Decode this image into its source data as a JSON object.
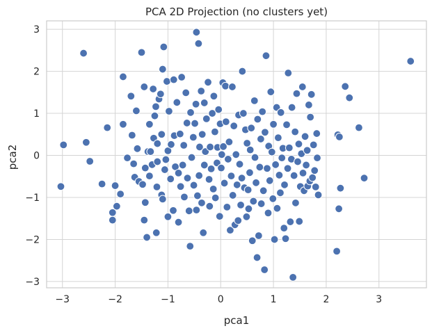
{
  "chart_data": {
    "type": "scatter",
    "title": "PCA 2D Projection (no clusters yet)",
    "xlabel": "pca1",
    "ylabel": "pca2",
    "xlim": [
      -3.3,
      3.9
    ],
    "ylim": [
      -3.15,
      3.2
    ],
    "xticks": [
      -3,
      -2,
      -1,
      0,
      1,
      2,
      3
    ],
    "yticks": [
      -3,
      -2,
      -1,
      0,
      1,
      2,
      3
    ],
    "grid": true,
    "point_color": "#4c72b0",
    "points": [
      [
        -3.03,
        -0.74
      ],
      [
        -2.98,
        0.25
      ],
      [
        -2.6,
        2.43
      ],
      [
        -2.55,
        0.31
      ],
      [
        -2.48,
        -0.14
      ],
      [
        -2.25,
        -0.68
      ],
      [
        -2.15,
        0.66
      ],
      [
        -2.05,
        -1.36
      ],
      [
        -2.05,
        -1.54
      ],
      [
        -2.0,
        -0.72
      ],
      [
        -1.97,
        -1.21
      ],
      [
        -1.9,
        -0.92
      ],
      [
        -1.85,
        1.87
      ],
      [
        -1.85,
        0.74
      ],
      [
        -1.77,
        -0.06
      ],
      [
        -1.7,
        1.41
      ],
      [
        -1.68,
        0.48
      ],
      [
        -1.65,
        -0.2
      ],
      [
        -1.63,
        -0.52
      ],
      [
        -1.6,
        1.06
      ],
      [
        -1.58,
        0.16
      ],
      [
        -1.55,
        -0.62
      ],
      [
        -1.5,
        2.45
      ],
      [
        -1.48,
        -0.69
      ],
      [
        -1.45,
        1.63
      ],
      [
        -1.43,
        -1.12
      ],
      [
        -1.43,
        -0.3
      ],
      [
        -1.45,
        -1.54
      ],
      [
        -1.4,
        -1.95
      ],
      [
        -1.38,
        0.09
      ],
      [
        -1.35,
        -0.49
      ],
      [
        -1.35,
        0.74
      ],
      [
        -1.33,
        0.09
      ],
      [
        -1.3,
        -0.22
      ],
      [
        -1.28,
        1.58
      ],
      [
        -1.27,
        0.41
      ],
      [
        -1.25,
        0.94
      ],
      [
        -1.23,
        1.16
      ],
      [
        -1.22,
        -1.84
      ],
      [
        -1.21,
        -0.75
      ],
      [
        -1.2,
        -0.15
      ],
      [
        -1.2,
        0.28
      ],
      [
        -1.17,
        1.34
      ],
      [
        -1.14,
        1.46
      ],
      [
        -1.12,
        -0.94
      ],
      [
        -1.12,
        0.5
      ],
      [
        -1.1,
        -1.04
      ],
      [
        -1.1,
        2.05
      ],
      [
        -1.08,
        2.58
      ],
      [
        -1.06,
        -0.34
      ],
      [
        -1.04,
        -0.1
      ],
      [
        -1.02,
        1.76
      ],
      [
        -1.0,
        -1.46
      ],
      [
        -1.0,
        0.11
      ],
      [
        -0.98,
        1.05
      ],
      [
        -0.95,
        -0.56
      ],
      [
        -0.94,
        0.26
      ],
      [
        -0.9,
        -1.31
      ],
      [
        -0.89,
        1.8
      ],
      [
        -0.88,
        0.47
      ],
      [
        -0.86,
        -0.27
      ],
      [
        -0.83,
        1.26
      ],
      [
        -0.8,
        -0.42
      ],
      [
        -0.8,
        -1.59
      ],
      [
        -0.77,
        0.51
      ],
      [
        -0.76,
        -0.74
      ],
      [
        -0.74,
        1.86
      ],
      [
        -0.72,
        -0.23
      ],
      [
        -0.7,
        0.24
      ],
      [
        -0.69,
        -0.99
      ],
      [
        -0.66,
        1.49
      ],
      [
        -0.64,
        0.77
      ],
      [
        -0.63,
        -0.54
      ],
      [
        -0.6,
        -1.32
      ],
      [
        -0.58,
        -2.16
      ],
      [
        -0.57,
        1.02
      ],
      [
        -0.55,
        -0.05
      ],
      [
        -0.52,
        0.43
      ],
      [
        -0.51,
        -0.71
      ],
      [
        -0.49,
        0.76
      ],
      [
        -0.47,
        1.22
      ],
      [
        -0.46,
        -1.3
      ],
      [
        -0.46,
        2.93
      ],
      [
        -0.44,
        -0.96
      ],
      [
        -0.42,
        2.66
      ],
      [
        -0.41,
        -0.48
      ],
      [
        -0.4,
        0.2
      ],
      [
        -0.37,
        1.53
      ],
      [
        -0.36,
        -1.13
      ],
      [
        -0.35,
        0.5
      ],
      [
        -0.33,
        -1.84
      ],
      [
        -0.31,
        1.25
      ],
      [
        -0.31,
        -0.23
      ],
      [
        -0.29,
        0.09
      ],
      [
        -0.27,
        0.87
      ],
      [
        -0.24,
        1.74
      ],
      [
        -0.22,
        -0.57
      ],
      [
        -0.21,
        -1.21
      ],
      [
        -0.2,
        0.2
      ],
      [
        -0.18,
        -0.32
      ],
      [
        -0.16,
        1.0
      ],
      [
        -0.14,
        -0.8
      ],
      [
        -0.13,
        1.41
      ],
      [
        -0.11,
        0.56
      ],
      [
        -0.1,
        -1.01
      ],
      [
        -0.07,
        -0.18
      ],
      [
        -0.06,
        0.19
      ],
      [
        -0.04,
        1.09
      ],
      [
        -0.02,
        -1.45
      ],
      [
        -0.01,
        0.75
      ],
      [
        0.01,
        -0.3
      ],
      [
        0.02,
        0.02
      ],
      [
        0.04,
        1.73
      ],
      [
        0.05,
        0.21
      ],
      [
        0.07,
        -0.66
      ],
      [
        0.09,
        1.65
      ],
      [
        0.1,
        0.8
      ],
      [
        0.12,
        -1.23
      ],
      [
        0.14,
        -0.09
      ],
      [
        0.16,
        0.32
      ],
      [
        0.18,
        -1.78
      ],
      [
        0.2,
        -0.49
      ],
      [
        0.22,
        1.63
      ],
      [
        0.23,
        -0.95
      ],
      [
        0.25,
        0.7
      ],
      [
        0.27,
        -1.65
      ],
      [
        0.29,
        0.02
      ],
      [
        0.31,
        -0.7
      ],
      [
        0.33,
        -1.55
      ],
      [
        0.34,
        0.96
      ],
      [
        0.36,
        -0.21
      ],
      [
        0.38,
        -1.18
      ],
      [
        0.4,
        -0.54
      ],
      [
        0.41,
        2.0
      ],
      [
        0.43,
        1.0
      ],
      [
        0.45,
        -0.77
      ],
      [
        0.47,
        0.61
      ],
      [
        0.49,
        -1.46
      ],
      [
        0.5,
        0.29
      ],
      [
        0.52,
        -0.82
      ],
      [
        0.53,
        -1.27
      ],
      [
        0.55,
        -0.41
      ],
      [
        0.56,
        0.13
      ],
      [
        0.58,
        0.65
      ],
      [
        0.6,
        -2.03
      ],
      [
        0.62,
        -1.09
      ],
      [
        0.64,
        1.3
      ],
      [
        0.65,
        -0.05
      ],
      [
        0.67,
        -0.65
      ],
      [
        0.69,
        -2.43
      ],
      [
        0.7,
        0.86
      ],
      [
        0.72,
        -1.91
      ],
      [
        0.74,
        -0.28
      ],
      [
        0.76,
        0.39
      ],
      [
        0.77,
        -1.15
      ],
      [
        0.79,
        1.04
      ],
      [
        0.81,
        -0.84
      ],
      [
        0.83,
        -2.72
      ],
      [
        0.84,
        0.55
      ],
      [
        0.86,
        2.37
      ],
      [
        0.88,
        -0.31
      ],
      [
        0.9,
        -1.37
      ],
      [
        0.91,
        0.22
      ],
      [
        0.93,
        -0.6
      ],
      [
        0.95,
        1.51
      ],
      [
        0.97,
        0.08
      ],
      [
        0.99,
        -1.03
      ],
      [
        1.0,
        0.74
      ],
      [
        1.02,
        -2.0
      ],
      [
        1.04,
        -0.22
      ],
      [
        1.06,
        1.14
      ],
      [
        1.07,
        -1.26
      ],
      [
        1.09,
        0.42
      ],
      [
        1.11,
        -0.47
      ],
      [
        1.13,
        -0.89
      ],
      [
        1.14,
        1.02
      ],
      [
        1.16,
        -0.06
      ],
      [
        1.18,
        0.17
      ],
      [
        1.2,
        -1.73
      ],
      [
        1.21,
        -0.7
      ],
      [
        1.23,
        -1.98
      ],
      [
        1.25,
        0.73
      ],
      [
        1.27,
        -0.31
      ],
      [
        1.28,
        1.96
      ],
      [
        1.3,
        0.18
      ],
      [
        1.32,
        -1.58
      ],
      [
        1.34,
        -0.09
      ],
      [
        1.35,
        1.14
      ],
      [
        1.37,
        -2.9
      ],
      [
        1.39,
        -0.48
      ],
      [
        1.41,
        0.56
      ],
      [
        1.42,
        -1.13
      ],
      [
        1.44,
        1.47
      ],
      [
        1.46,
        -0.15
      ],
      [
        1.48,
        0.27
      ],
      [
        1.49,
        -1.57
      ],
      [
        1.51,
        -0.74
      ],
      [
        1.53,
        0.04
      ],
      [
        1.55,
        1.63
      ],
      [
        1.56,
        -0.42
      ],
      [
        1.58,
        -0.84
      ],
      [
        1.6,
        0.45
      ],
      [
        1.62,
        -0.23
      ],
      [
        1.64,
        0.12
      ],
      [
        1.65,
        -0.73
      ],
      [
        1.67,
        1.2
      ],
      [
        1.69,
        -0.61
      ],
      [
        1.7,
        0.91
      ],
      [
        1.72,
        1.45
      ],
      [
        1.74,
        -0.53
      ],
      [
        1.76,
        0.25
      ],
      [
        1.78,
        -0.36
      ],
      [
        1.8,
        -0.75
      ],
      [
        1.82,
        0.52
      ],
      [
        1.83,
        -0.06
      ],
      [
        1.85,
        -0.94
      ],
      [
        2.2,
        -2.28
      ],
      [
        2.22,
        0.49
      ],
      [
        2.24,
        -1.27
      ],
      [
        2.25,
        0.44
      ],
      [
        2.27,
        -0.78
      ],
      [
        2.36,
        1.64
      ],
      [
        2.44,
        1.37
      ],
      [
        2.62,
        0.66
      ],
      [
        2.72,
        -0.54
      ],
      [
        3.6,
        2.24
      ]
    ]
  }
}
